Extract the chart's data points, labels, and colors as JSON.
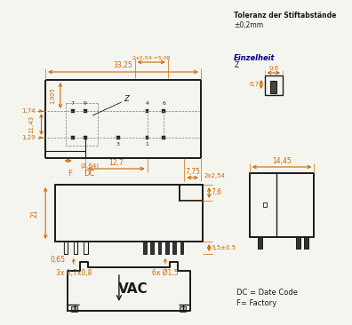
{
  "bg_color": "#f5f5f0",
  "line_color": "#1a1a1a",
  "orange": "#cc6600",
  "title1": "Toleranz der Stiftabstände",
  "title2": "±0,2mm",
  "einzel_label": "Einzelheit",
  "einzel_z": "Z",
  "dim_0_6": "0,6",
  "dim_0_7": "0,7",
  "dim_14_45": "14,45",
  "dim_33_25": "33,25",
  "dim_1905": "1,905",
  "dim_174": "1,74",
  "dim_1143": "11,43",
  "dim_129": "1,29",
  "dim_264": "(2,64)",
  "dim_127": "12,7",
  "dim_775": "7,75",
  "dim_2x254": "2x2,54",
  "dim_2x254b": "2x2,54 =5,08",
  "dim_z": "Z",
  "label_f": "F",
  "label_dc": "DC",
  "dim_21": "21",
  "dim_76": "7,6",
  "dim_065": "0,65",
  "dim_35": "3,5±0.5",
  "label_3x": "3x 0,7x0,8",
  "label_6x": "6x Ø1,5",
  "dc_text": "DC = Date Code",
  "f_text": "F= Factory",
  "vac_text": "VAC"
}
